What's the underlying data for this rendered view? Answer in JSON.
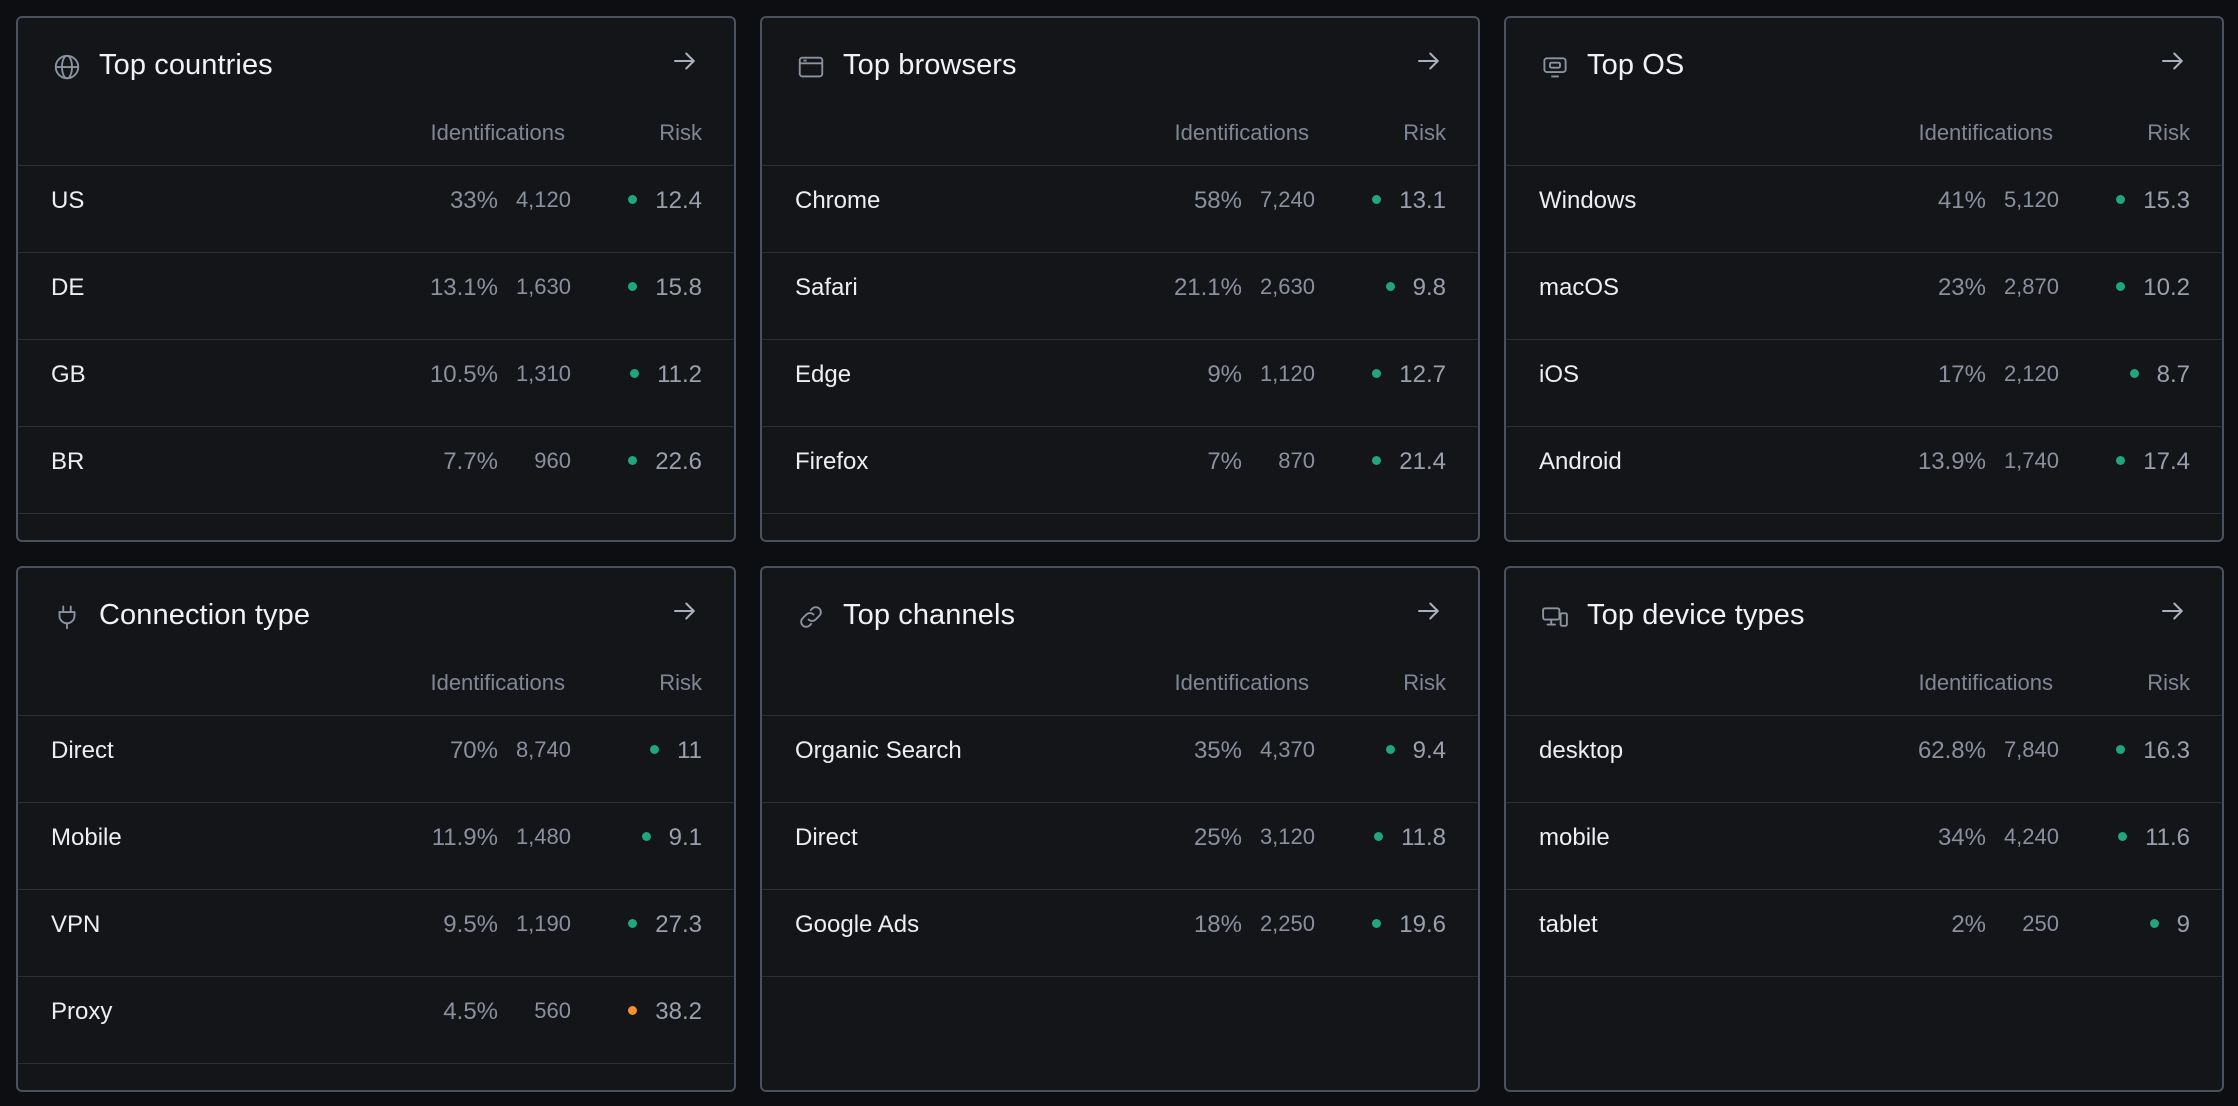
{
  "colors": {
    "good": "#1fa67a",
    "warn": "#f5902e"
  },
  "panels": [
    {
      "title": "Top countries",
      "icon": "globe-icon",
      "col_identifications": "Identifications",
      "col_risk": "Risk",
      "rows": [
        {
          "label": "US",
          "pct": "33%",
          "count": "4,120",
          "risk": "12.4",
          "status": "good"
        },
        {
          "label": "DE",
          "pct": "13.1%",
          "count": "1,630",
          "risk": "15.8",
          "status": "good"
        },
        {
          "label": "GB",
          "pct": "10.5%",
          "count": "1,310",
          "risk": "11.2",
          "status": "good"
        },
        {
          "label": "BR",
          "pct": "7.7%",
          "count": "960",
          "risk": "22.6",
          "status": "good"
        }
      ]
    },
    {
      "title": "Top browsers",
      "icon": "browser-window-icon",
      "col_identifications": "Identifications",
      "col_risk": "Risk",
      "rows": [
        {
          "label": "Chrome",
          "pct": "58%",
          "count": "7,240",
          "risk": "13.1",
          "status": "good"
        },
        {
          "label": "Safari",
          "pct": "21.1%",
          "count": "2,630",
          "risk": "9.8",
          "status": "good"
        },
        {
          "label": "Edge",
          "pct": "9%",
          "count": "1,120",
          "risk": "12.7",
          "status": "good"
        },
        {
          "label": "Firefox",
          "pct": "7%",
          "count": "870",
          "risk": "21.4",
          "status": "good"
        }
      ]
    },
    {
      "title": "Top OS",
      "icon": "monitor-icon",
      "col_identifications": "Identifications",
      "col_risk": "Risk",
      "rows": [
        {
          "label": "Windows",
          "pct": "41%",
          "count": "5,120",
          "risk": "15.3",
          "status": "good"
        },
        {
          "label": "macOS",
          "pct": "23%",
          "count": "2,870",
          "risk": "10.2",
          "status": "good"
        },
        {
          "label": "iOS",
          "pct": "17%",
          "count": "2,120",
          "risk": "8.7",
          "status": "good"
        },
        {
          "label": "Android",
          "pct": "13.9%",
          "count": "1,740",
          "risk": "17.4",
          "status": "good"
        }
      ]
    },
    {
      "title": "Connection type",
      "icon": "plug-icon",
      "col_identifications": "Identifications",
      "col_risk": "Risk",
      "rows": [
        {
          "label": "Direct",
          "pct": "70%",
          "count": "8,740",
          "risk": "11",
          "status": "good"
        },
        {
          "label": "Mobile",
          "pct": "11.9%",
          "count": "1,480",
          "risk": "9.1",
          "status": "good"
        },
        {
          "label": "VPN",
          "pct": "9.5%",
          "count": "1,190",
          "risk": "27.3",
          "status": "good"
        },
        {
          "label": "Proxy",
          "pct": "4.5%",
          "count": "560",
          "risk": "38.2",
          "status": "warn"
        }
      ]
    },
    {
      "title": "Top channels",
      "icon": "link-icon",
      "col_identifications": "Identifications",
      "col_risk": "Risk",
      "rows": [
        {
          "label": "Organic Search",
          "pct": "35%",
          "count": "4,370",
          "risk": "9.4",
          "status": "good"
        },
        {
          "label": "Direct",
          "pct": "25%",
          "count": "3,120",
          "risk": "11.8",
          "status": "good"
        },
        {
          "label": "Google Ads",
          "pct": "18%",
          "count": "2,250",
          "risk": "19.6",
          "status": "good"
        }
      ]
    },
    {
      "title": "Top device types",
      "icon": "devices-icon",
      "col_identifications": "Identifications",
      "col_risk": "Risk",
      "rows": [
        {
          "label": "desktop",
          "pct": "62.8%",
          "count": "7,840",
          "risk": "16.3",
          "status": "good"
        },
        {
          "label": "mobile",
          "pct": "34%",
          "count": "4,240",
          "risk": "11.6",
          "status": "good"
        },
        {
          "label": "tablet",
          "pct": "2%",
          "count": "250",
          "risk": "9",
          "status": "good"
        }
      ]
    }
  ]
}
